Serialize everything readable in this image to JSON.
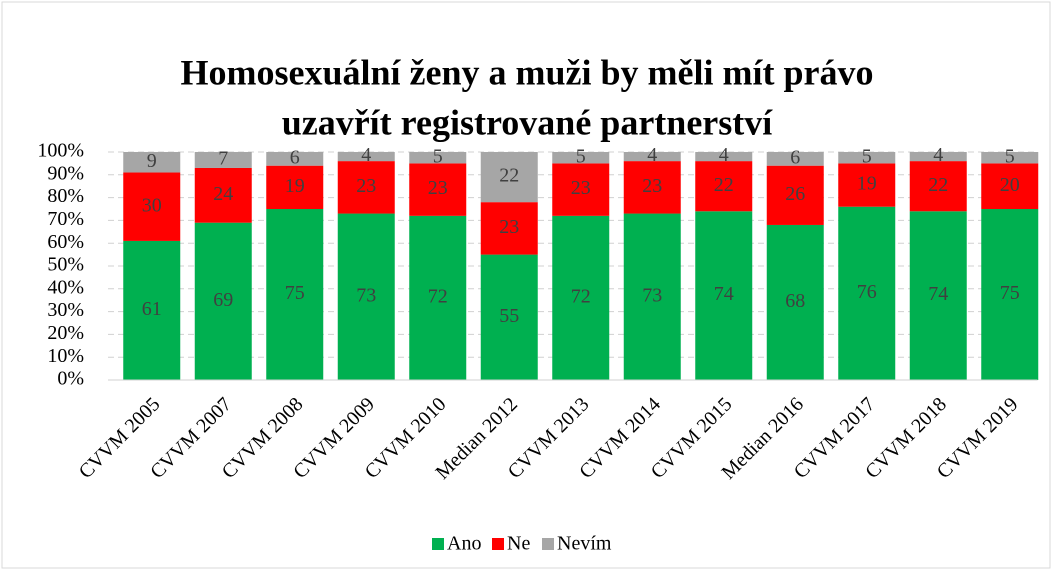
{
  "chart_data": {
    "type": "stacked_bar",
    "title": [
      "Homosexuální ženy a muži by měli mít právo",
      "uzavřít registrované partnerství"
    ],
    "categories": [
      "CVVM 2005",
      "CVVM 2007",
      "CVVM 2008",
      "CVVM 2009",
      "CVVM 2010",
      "Median 2012",
      "CVVM 2013",
      "CVVM 2014",
      "CVVM 2015",
      "Median 2016",
      "CVVM 2017",
      "CVVM 2018",
      "CVVM 2019"
    ],
    "series": [
      {
        "name": "Ano",
        "color": "#00b050",
        "values": [
          61,
          69,
          75,
          73,
          72,
          55,
          72,
          73,
          74,
          68,
          76,
          74,
          75
        ]
      },
      {
        "name": "Ne",
        "color": "#ff0000",
        "values": [
          30,
          24,
          19,
          23,
          23,
          23,
          23,
          23,
          22,
          26,
          19,
          22,
          20
        ]
      },
      {
        "name": "Nevím",
        "color": "#a6a6a6",
        "values": [
          9,
          7,
          6,
          4,
          5,
          22,
          5,
          4,
          4,
          6,
          5,
          4,
          5
        ]
      }
    ],
    "ylim": [
      0,
      100
    ],
    "yticks": [
      {
        "value": 0,
        "label": "0%"
      },
      {
        "value": 10,
        "label": "10%"
      },
      {
        "value": 20,
        "label": "20%"
      },
      {
        "value": 30,
        "label": "30%"
      },
      {
        "value": 40,
        "label": "40%"
      },
      {
        "value": 50,
        "label": "50%"
      },
      {
        "value": 60,
        "label": "60%"
      },
      {
        "value": 70,
        "label": "70%"
      },
      {
        "value": 80,
        "label": "80%"
      },
      {
        "value": 90,
        "label": "90%"
      },
      {
        "value": 100,
        "label": "100%"
      }
    ],
    "grid": true,
    "legend": "bottom"
  }
}
